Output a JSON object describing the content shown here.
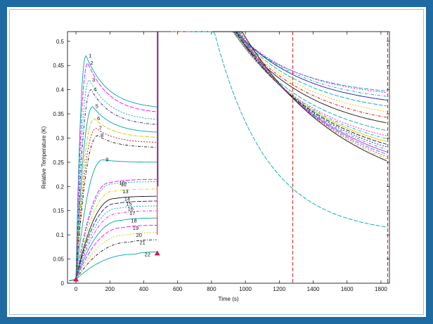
{
  "chart_data": {
    "type": "line",
    "title": "",
    "xlabel": "Time (s)",
    "ylabel": "Relative Temperature (K)",
    "xlim": [
      -50,
      1850
    ],
    "ylim": [
      0,
      0.52
    ],
    "xticks": [
      0,
      200,
      400,
      600,
      800,
      1000,
      1200,
      1400,
      1600,
      1800
    ],
    "yticks": [
      0,
      0.05,
      0.1,
      0.15,
      0.2,
      0.25,
      0.3,
      0.35,
      0.4,
      0.45,
      0.5
    ],
    "xtick_labels": [
      "0",
      "200",
      "400",
      "600",
      "800",
      "1000",
      "1200",
      "1400",
      "1600",
      "1800"
    ],
    "ytick_labels": [
      "0",
      "0.05",
      "0.1",
      "0.15",
      "0.2",
      "0.25",
      "0.3",
      "0.35",
      "0.4",
      "0.45",
      "0.5"
    ],
    "grid": false,
    "heating_start": 0,
    "heating_end": 480,
    "series": [
      {
        "name": "1",
        "peak": 0.47,
        "peak_x": 60,
        "end_heat": 0.36,
        "color": "#00a6a6",
        "decay_end": 0.385,
        "decay_k": 600
      },
      {
        "name": "2",
        "peak": 0.455,
        "peak_x": 70,
        "end_heat": 0.35,
        "color": "#ff00ff",
        "decay_end": 0.38,
        "decay_k": 620
      },
      {
        "name": "3",
        "peak": 0.42,
        "peak_x": 80,
        "end_heat": 0.335,
        "color": "#00a6a6",
        "decay_end": 0.37,
        "decay_k": 640
      },
      {
        "name": "4",
        "peak": 0.4,
        "peak_x": 90,
        "end_heat": 0.325,
        "color": "#1a1aa0",
        "decay_end": 0.36,
        "decay_k": 660
      },
      {
        "name": "5",
        "peak": 0.365,
        "peak_x": 100,
        "end_heat": 0.31,
        "color": "#00a6a6",
        "decay_end": 0.345,
        "decay_k": 680
      },
      {
        "name": "6",
        "peak": 0.34,
        "peak_x": 110,
        "end_heat": 0.3,
        "color": "#cccc00",
        "decay_end": 0.33,
        "decay_k": 700
      },
      {
        "name": "7",
        "peak": 0.32,
        "peak_x": 120,
        "end_heat": 0.29,
        "color": "#cc0000",
        "decay_end": 0.315,
        "decay_k": 720
      },
      {
        "name": "8",
        "peak": 0.305,
        "peak_x": 130,
        "end_heat": 0.28,
        "color": "#111111",
        "decay_end": 0.3,
        "decay_k": 740
      },
      {
        "name": "9",
        "peak": 0.255,
        "peak_x": 160,
        "end_heat": 0.25,
        "color": "#00a6a6",
        "decay_end": 0.28,
        "decay_k": 760
      },
      {
        "name": "10",
        "peak": 0.208,
        "peak_x": 200,
        "end_heat": 0.215,
        "color": "#ff00ff",
        "decay_end": 0.265,
        "decay_k": 780
      },
      {
        "name": "12",
        "peak": 0.205,
        "peak_x": 210,
        "end_heat": 0.21,
        "color": "#00a6a6",
        "decay_end": 0.255,
        "decay_k": 800
      },
      {
        "name": "13",
        "peak": 0.19,
        "peak_x": 220,
        "end_heat": 0.195,
        "color": "#cccc00",
        "decay_end": 0.245,
        "decay_k": 820
      },
      {
        "name": "14",
        "peak": 0.175,
        "peak_x": 230,
        "end_heat": 0.18,
        "color": "#111111",
        "decay_end": 0.235,
        "decay_k": 840
      },
      {
        "name": "15",
        "peak": 0.165,
        "peak_x": 240,
        "end_heat": 0.17,
        "color": "#1a1aa0",
        "decay_end": 0.225,
        "decay_k": 860
      },
      {
        "name": "16",
        "peak": 0.155,
        "peak_x": 250,
        "end_heat": 0.16,
        "color": "#00a6a6",
        "decay_end": 0.215,
        "decay_k": 880
      },
      {
        "name": "17",
        "peak": 0.145,
        "peak_x": 260,
        "end_heat": 0.15,
        "color": "#ff00ff",
        "decay_end": 0.205,
        "decay_k": 900
      },
      {
        "name": "18",
        "peak": 0.13,
        "peak_x": 270,
        "end_heat": 0.135,
        "color": "#00a6a6",
        "decay_end": 0.195,
        "decay_k": 920
      },
      {
        "name": "19",
        "peak": 0.115,
        "peak_x": 280,
        "end_heat": 0.12,
        "color": "#ff00ff",
        "decay_end": 0.185,
        "decay_k": 940
      },
      {
        "name": "20",
        "peak": 0.1,
        "peak_x": 300,
        "end_heat": 0.105,
        "color": "#cccc00",
        "decay_end": 0.175,
        "decay_k": 960
      },
      {
        "name": "21",
        "peak": 0.085,
        "peak_x": 320,
        "end_heat": 0.09,
        "color": "#111111",
        "decay_end": 0.165,
        "decay_k": 980
      },
      {
        "name": "22",
        "peak": 0.06,
        "peak_x": 350,
        "end_heat": 0.065,
        "color": "#00a6a6",
        "decay_end": 0.1,
        "decay_k": 500
      }
    ],
    "markers": [
      {
        "x": 0,
        "y": 0.008,
        "color": "#d4145a"
      },
      {
        "x": 480,
        "y": 0.062,
        "color": "#d4145a"
      }
    ],
    "vertical_lines": [
      {
        "x": 1280,
        "color": "#cc0000",
        "style": "dashed"
      },
      {
        "x": 1840,
        "color": "#cc0000",
        "style": "dashed"
      }
    ]
  }
}
